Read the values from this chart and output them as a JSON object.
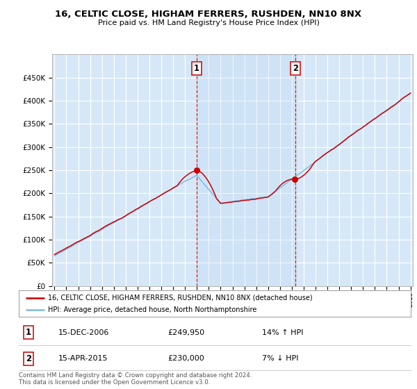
{
  "title": "16, CELTIC CLOSE, HIGHAM FERRERS, RUSHDEN, NN10 8NX",
  "subtitle": "Price paid vs. HM Land Registry's House Price Index (HPI)",
  "background_color": "#ffffff",
  "plot_bg_color": "#d6e8f7",
  "grid_color": "#ffffff",
  "hpi_line_color": "#7fb8e8",
  "price_line_color": "#cc0000",
  "sale1_year": 2006.96,
  "sale1_price": 249950,
  "sale2_year": 2015.29,
  "sale2_price": 230000,
  "legend_house_label": "16, CELTIC CLOSE, HIGHAM FERRERS, RUSHDEN, NN10 8NX (detached house)",
  "legend_hpi_label": "HPI: Average price, detached house, North Northamptonshire",
  "footer_text": "Contains HM Land Registry data © Crown copyright and database right 2024.\nThis data is licensed under the Open Government Licence v3.0.",
  "ylim": [
    0,
    500000
  ],
  "yticks": [
    0,
    50000,
    100000,
    150000,
    200000,
    250000,
    300000,
    350000,
    400000,
    450000
  ],
  "start_year": 1995,
  "end_year": 2025
}
